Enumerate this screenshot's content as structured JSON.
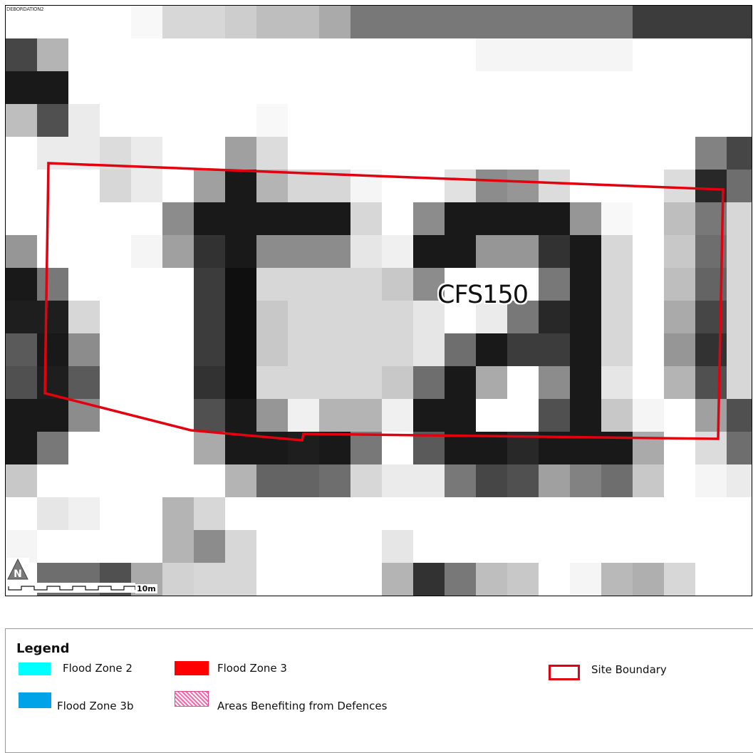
{
  "map": {
    "layer_name": "DEBORDATION2",
    "site_label": "CFS150",
    "north_label": "N",
    "scale_label": "10m",
    "boundary_color": "#e3000f"
  },
  "legend": {
    "title": "Legend",
    "items": [
      {
        "label": "Flood Zone 2",
        "color": "#00ffff"
      },
      {
        "label": "Flood Zone 3",
        "color": "#ff0000"
      },
      {
        "label": "Site Boundary",
        "color": "#e3000f"
      },
      {
        "label": "Flood Zone 3b",
        "color": "#00a2e8"
      },
      {
        "label": "Areas Benefiting from Defences",
        "color": "#ff66aa"
      }
    ]
  }
}
